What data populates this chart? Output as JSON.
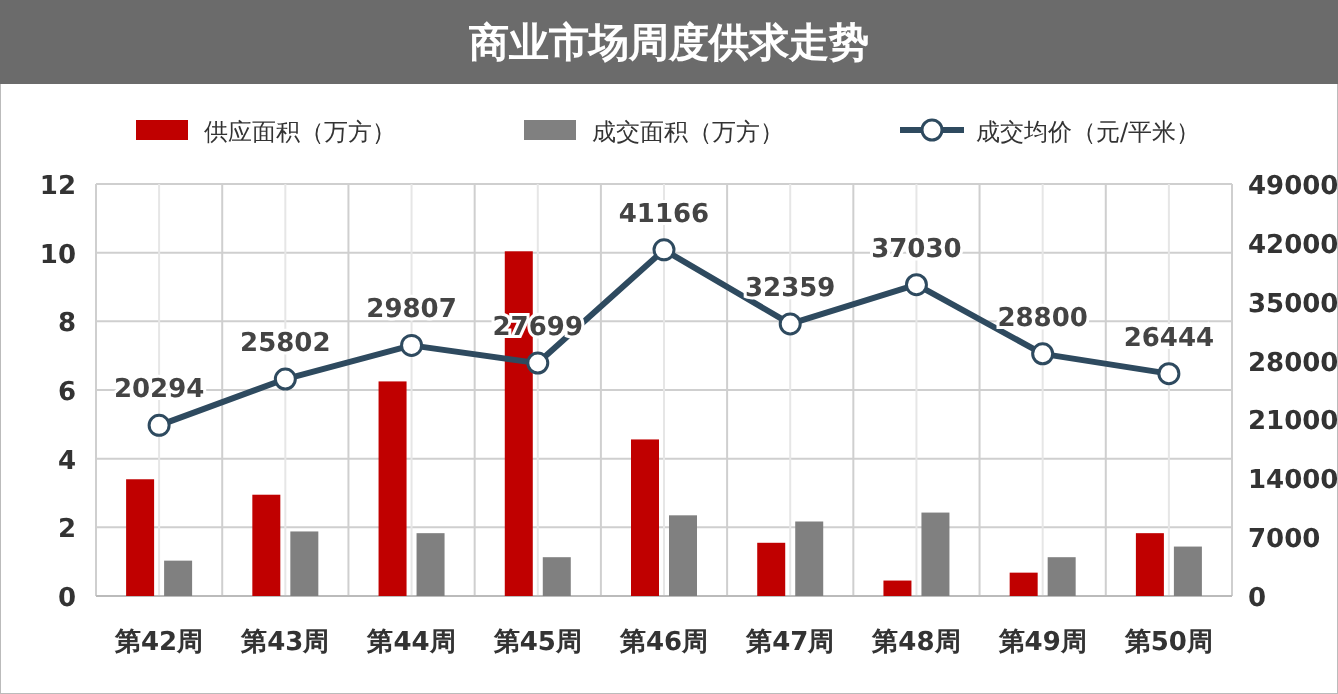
{
  "chart_data": {
    "type": "bar",
    "title": "商业市场周度供求走势",
    "categories": [
      "第42周",
      "第43周",
      "第44周",
      "第45周",
      "第46周",
      "第47周",
      "第48周",
      "第49周",
      "第50周"
    ],
    "series": [
      {
        "name": "供应面积（万方）",
        "color": "#c00000",
        "values": [
          3.4,
          2.95,
          6.25,
          10.04,
          4.56,
          1.55,
          0.45,
          0.68,
          1.83
        ]
      },
      {
        "name": "成交面积（万方）",
        "color": "#808080",
        "values": [
          1.03,
          1.88,
          1.83,
          1.13,
          2.35,
          2.17,
          2.43,
          1.13,
          1.44
        ]
      },
      {
        "name": "成交均价（元/平米）",
        "type": "line",
        "axis": "y2",
        "color": "#2e4a5f",
        "marker": "circle",
        "values": [
          20294,
          25802,
          29807,
          27699,
          41166,
          32359,
          37030,
          28800,
          26444
        ],
        "value_labels": [
          "20294",
          "25802",
          "29807",
          "27699",
          "41166",
          "32359",
          "37030",
          "28800",
          "26444"
        ]
      }
    ],
    "ylim": [
      0,
      12
    ],
    "yticks": [
      0,
      2,
      4,
      6,
      8,
      10,
      12
    ],
    "y2lim": [
      0,
      49000
    ],
    "y2ticks": [
      0,
      7000,
      14000,
      21000,
      28000,
      35000,
      42000,
      49000
    ],
    "grid": true,
    "legend": "top"
  }
}
